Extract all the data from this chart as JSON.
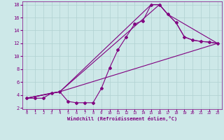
{
  "xlabel": "Windchill (Refroidissement éolien,°C)",
  "background_color": "#cde8e8",
  "line_color": "#800080",
  "grid_color": "#b0d0d0",
  "xlim": [
    -0.5,
    23.5
  ],
  "ylim": [
    1.8,
    18.5
  ],
  "yticks": [
    2,
    4,
    6,
    8,
    10,
    12,
    14,
    16,
    18
  ],
  "xticks": [
    0,
    1,
    2,
    3,
    4,
    5,
    6,
    7,
    8,
    9,
    10,
    11,
    12,
    13,
    14,
    15,
    16,
    17,
    18,
    19,
    20,
    21,
    22,
    23
  ],
  "line1_x": [
    0,
    1,
    2,
    3,
    4,
    5,
    6,
    7,
    8,
    9,
    10,
    11,
    12,
    13,
    14,
    15,
    16,
    17,
    18,
    19,
    20,
    21,
    22,
    23
  ],
  "line1_y": [
    3.5,
    3.5,
    3.5,
    4.3,
    4.5,
    3.0,
    2.8,
    2.8,
    2.8,
    5.0,
    8.2,
    11.0,
    13.0,
    15.0,
    15.5,
    18.0,
    18.0,
    16.5,
    15.2,
    13.0,
    12.5,
    12.3,
    12.2,
    12.0
  ],
  "line2_x": [
    0,
    3,
    4,
    23
  ],
  "line2_y": [
    3.5,
    4.3,
    4.5,
    12.0
  ],
  "line3_x": [
    0,
    4,
    16,
    17,
    23
  ],
  "line3_y": [
    3.5,
    4.5,
    18.0,
    16.5,
    12.0
  ],
  "line4_x": [
    0,
    4,
    15,
    16,
    17,
    18,
    19,
    20,
    21,
    22,
    23
  ],
  "line4_y": [
    3.5,
    4.5,
    18.0,
    18.0,
    16.5,
    15.2,
    13.0,
    12.5,
    12.3,
    12.2,
    12.0
  ]
}
